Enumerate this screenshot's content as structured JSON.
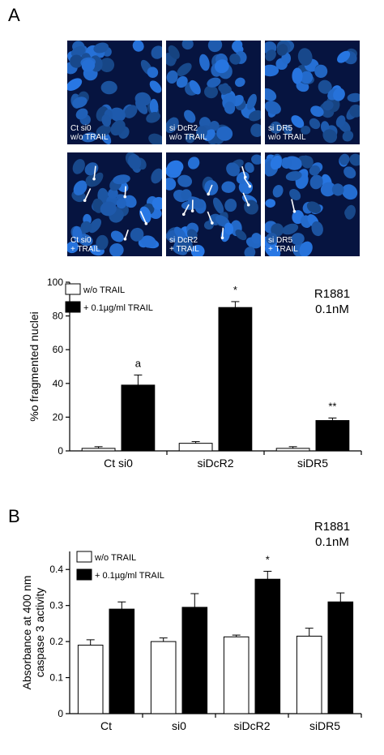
{
  "panel_a": {
    "letter": "A",
    "tiles": [
      {
        "line1": "Ct si0",
        "line2": "w/o TRAIL",
        "arrows": 0
      },
      {
        "line1": "si DcR2",
        "line2": "w/o TRAIL",
        "arrows": 0
      },
      {
        "line1": "si DR5",
        "line2": "w/o TRAIL",
        "arrows": 0
      },
      {
        "line1": "Ct si0",
        "line2": "+ TRAIL",
        "arrows": 5
      },
      {
        "line1": "si DcR2",
        "line2": "+ TRAIL",
        "arrows": 8
      },
      {
        "line1": "si DR5",
        "line2": "+ TRAIL",
        "arrows": 1
      }
    ]
  },
  "panel_b": {
    "letter": "B"
  },
  "colors": {
    "trail_bar": "#000000",
    "no_trail_bar": "#ffffff",
    "nuclei": "#2f7fe6",
    "tile_background": "#061440"
  },
  "chart_data": [
    {
      "type": "bar",
      "categories": [
        "Ct si0",
        "siDcR2",
        "siDR5"
      ],
      "series": [
        {
          "name": "w/o TRAIL",
          "values": [
            1.5,
            4.5,
            1.5
          ],
          "errors": [
            1,
            1,
            1
          ]
        },
        {
          "name": "+ 0.1µg/ml TRAIL",
          "values": [
            39,
            85,
            18
          ],
          "errors": [
            6,
            3.5,
            1.5
          ]
        }
      ],
      "annotations": [
        "a",
        "*",
        "**"
      ],
      "ylabel": "%o fragmented nuclei",
      "ylim": [
        0,
        100
      ],
      "yticks": [
        "0",
        "20",
        "40",
        "60",
        "80",
        "100"
      ],
      "corner_label": [
        "R1881",
        "0.1nM"
      ],
      "legend_position": "top-left"
    },
    {
      "type": "bar",
      "categories": [
        "Ct",
        "si0",
        "siDcR2",
        "siDR5"
      ],
      "series": [
        {
          "name": "w/o TRAIL",
          "values": [
            0.19,
            0.2,
            0.213,
            0.215
          ],
          "errors": [
            0.015,
            0.01,
            0.005,
            0.022
          ]
        },
        {
          "name": "+ 0.1µg/ml TRAIL",
          "values": [
            0.29,
            0.295,
            0.373,
            0.31
          ],
          "errors": [
            0.02,
            0.038,
            0.022,
            0.025
          ]
        }
      ],
      "annotations": [
        "",
        "",
        "*",
        ""
      ],
      "ylabel_lines": [
        "Absorbance at 400 nm",
        "caspase 3 activity"
      ],
      "ylim": [
        0,
        0.45
      ],
      "yticks": [
        "0",
        "0.1",
        "0.2",
        "0.3",
        "0.4"
      ],
      "corner_label": [
        "R1881",
        "0.1nM"
      ],
      "legend_position": "top-left"
    }
  ]
}
